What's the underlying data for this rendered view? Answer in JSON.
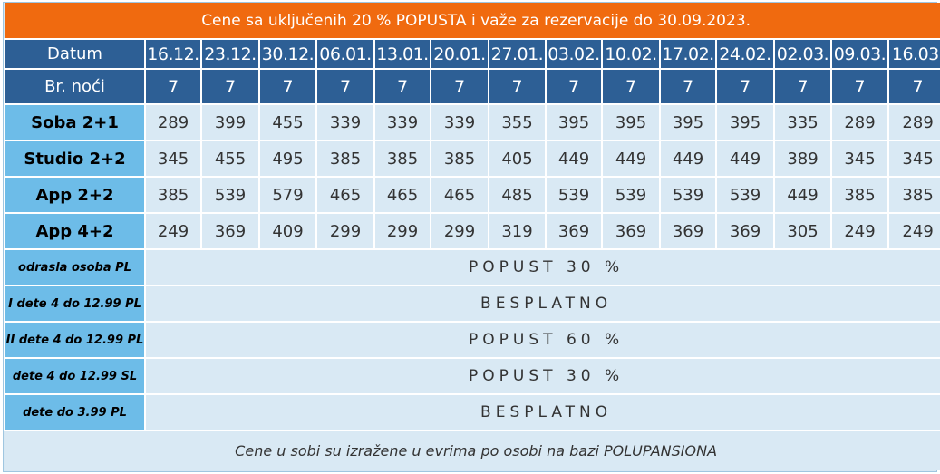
{
  "title": "Cene sa uključenih 20 % POPUSTA i važe za rezervacije do 30.09.2023.",
  "header": {
    "date_label": "Datum",
    "nights_label": "Br. noći",
    "dates": [
      "16.12.",
      "23.12.",
      "30.12.",
      "06.01.",
      "13.01.",
      "20.01.",
      "27.01.",
      "03.02.",
      "10.02.",
      "17.02.",
      "24.02.",
      "02.03.",
      "09.03.",
      "16.03."
    ],
    "nights": [
      "7",
      "7",
      "7",
      "7",
      "7",
      "7",
      "7",
      "7",
      "7",
      "7",
      "7",
      "7",
      "7",
      "7"
    ]
  },
  "rooms": [
    {
      "name": "Soba 2+1",
      "prices": [
        "289",
        "399",
        "455",
        "339",
        "339",
        "339",
        "355",
        "395",
        "395",
        "395",
        "395",
        "335",
        "289",
        "289"
      ]
    },
    {
      "name": "Studio 2+2",
      "prices": [
        "345",
        "455",
        "495",
        "385",
        "385",
        "385",
        "405",
        "449",
        "449",
        "449",
        "449",
        "389",
        "345",
        "345"
      ]
    },
    {
      "name": "App 2+2",
      "prices": [
        "385",
        "539",
        "579",
        "465",
        "465",
        "465",
        "485",
        "539",
        "539",
        "539",
        "539",
        "449",
        "385",
        "385"
      ]
    },
    {
      "name": "App 4+2",
      "prices": [
        "249",
        "369",
        "409",
        "299",
        "299",
        "299",
        "319",
        "369",
        "369",
        "369",
        "369",
        "305",
        "249",
        "249"
      ]
    }
  ],
  "rules": [
    {
      "label": "odrasla osoba PL",
      "value": "POPUST 30 %"
    },
    {
      "label": "I dete 4 do 12.99 PL",
      "value": "BESPLATNO"
    },
    {
      "label": "II dete 4 do 12.99 PL",
      "value": "POPUST 60 %"
    },
    {
      "label": "dete 4 do 12.99 SL",
      "value": "POPUST 30 %"
    },
    {
      "label": "dete do 3.99 PL",
      "value": "BESPLATNO"
    }
  ],
  "footer": "Cene u sobi su izražene u evrima po osobi na bazi POLUPANSIONA"
}
